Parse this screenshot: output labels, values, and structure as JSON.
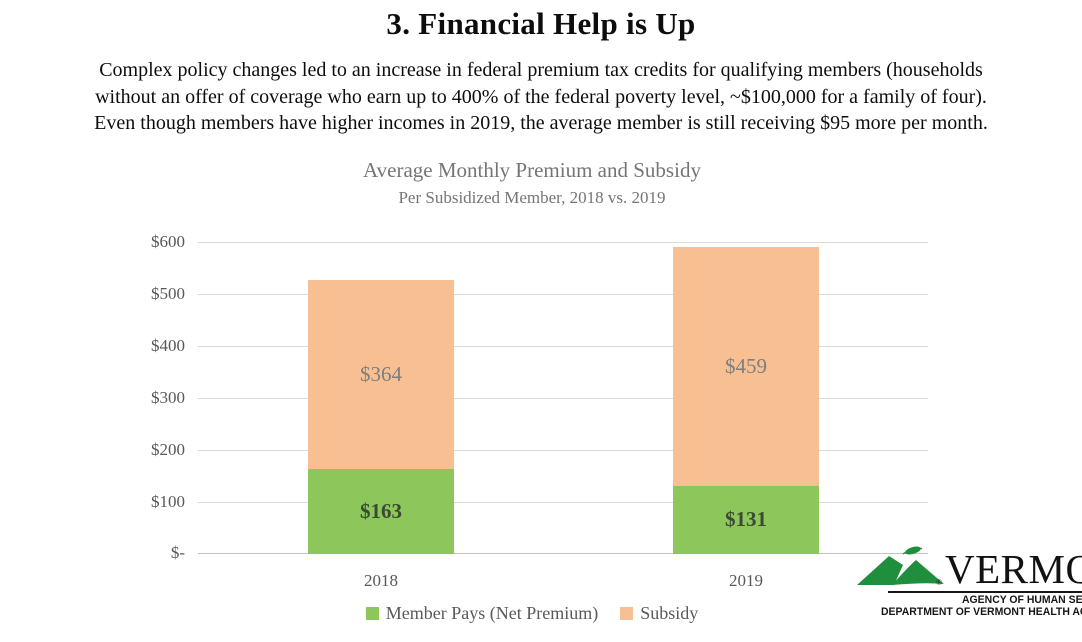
{
  "page": {
    "title": "3. Financial Help is Up",
    "intro_lines": [
      "Complex policy changes led to an increase in federal premium tax credits for qualifying members (households",
      "without an offer of coverage who earn up to 400% of the federal poverty level, ~$100,000 for a family of four).",
      "Even though members have higher incomes in 2019, the average member is still receiving $95 more per month."
    ]
  },
  "chart_data": {
    "type": "bar",
    "stacked": true,
    "title": "Average Monthly Premium and Subsidy",
    "subtitle": "Per Subsidized Member, 2018 vs. 2019",
    "categories": [
      "2018",
      "2019"
    ],
    "series": [
      {
        "name": "Member Pays (Net Premium)",
        "color": "#8dc75b",
        "values": [
          163,
          131
        ],
        "labels": [
          "$163",
          "$131"
        ]
      },
      {
        "name": "Subsidy",
        "color": "#f8c092",
        "values": [
          364,
          459
        ],
        "labels": [
          "$364",
          "$459"
        ]
      }
    ],
    "y_axis": {
      "min": 0,
      "max": 600,
      "ticks": [
        "$600",
        "$500",
        "$400",
        "$300",
        "$200",
        "$100",
        "$-"
      ]
    },
    "grid": true,
    "legend_position": "bottom"
  },
  "logo": {
    "wordmark": "VERMONT",
    "registered": "®",
    "line1": "AGENCY OF HUMAN SERVICES",
    "line2": "DEPARTMENT OF VERMONT HEALTH ACCESS"
  },
  "colors": {
    "member_green": "#8dc75b",
    "subsidy_orange": "#f8c092",
    "axis_gray": "#595959",
    "title_gray": "#757575",
    "gridline_gray": "#d9d9d9",
    "logo_green": "#1f8f3e"
  }
}
